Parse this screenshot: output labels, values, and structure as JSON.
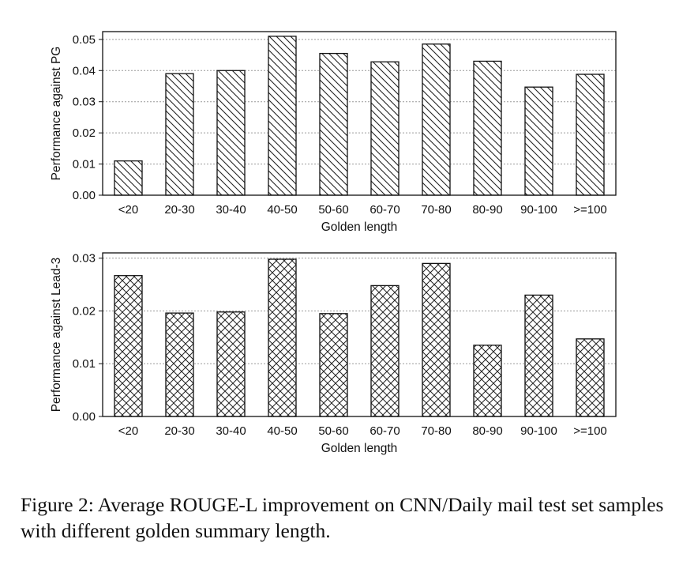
{
  "chart_data": [
    {
      "type": "bar",
      "xlabel": "Golden length",
      "ylabel": "Performance against PG",
      "categories": [
        "<20",
        "20-30",
        "30-40",
        "40-50",
        "50-60",
        "60-70",
        "70-80",
        "80-90",
        "90-100",
        ">=100"
      ],
      "values": [
        0.011,
        0.039,
        0.04,
        0.051,
        0.0455,
        0.0428,
        0.0485,
        0.043,
        0.0347,
        0.0388
      ],
      "ylim": [
        0,
        0.0525
      ],
      "yticks": [
        "0.00",
        "0.01",
        "0.02",
        "0.03",
        "0.04",
        "0.05"
      ],
      "ytick_values": [
        0,
        0.01,
        0.02,
        0.03,
        0.04,
        0.05
      ],
      "pattern": "diagonal-hatch",
      "grid": true
    },
    {
      "type": "bar",
      "xlabel": "Golden length",
      "ylabel": "Performance against Lead-3",
      "categories": [
        "<20",
        "20-30",
        "30-40",
        "40-50",
        "50-60",
        "60-70",
        "70-80",
        "80-90",
        "90-100",
        ">=100"
      ],
      "values": [
        0.0267,
        0.0196,
        0.0198,
        0.0298,
        0.0195,
        0.0248,
        0.029,
        0.0135,
        0.023,
        0.0147
      ],
      "ylim": [
        0,
        0.031
      ],
      "yticks": [
        "0.00",
        "0.01",
        "0.02",
        "0.03"
      ],
      "ytick_values": [
        0,
        0.01,
        0.02,
        0.03
      ],
      "pattern": "cross-hatch",
      "grid": true
    }
  ],
  "caption": "Figure 2: Average ROUGE-L improvement on CNN/Daily mail test set samples with different golden summary length."
}
